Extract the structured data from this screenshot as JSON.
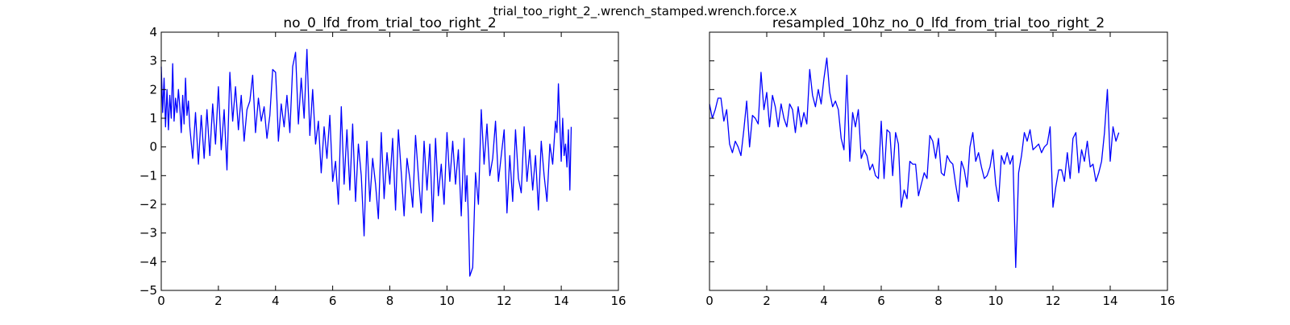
{
  "figure_title": "trial_too_right_2_.wrench_stamped.wrench.force.x",
  "chart_data": [
    {
      "type": "line",
      "title": "no_0_lfd_from_trial_too_right_2",
      "xlabel": "",
      "ylabel": "",
      "xlim": [
        0,
        16
      ],
      "ylim": [
        -5,
        4
      ],
      "xticks": [
        "0",
        "2",
        "4",
        "6",
        "8",
        "10",
        "12",
        "14",
        "16"
      ],
      "yticks": [
        "−5",
        "−4",
        "−3",
        "−2",
        "−1",
        "0",
        "1",
        "2",
        "3",
        "4"
      ],
      "grid": false,
      "line_color": "#0000ff",
      "series": [
        {
          "x": [
            0.0,
            0.05,
            0.1,
            0.15,
            0.2,
            0.25,
            0.3,
            0.35,
            0.4,
            0.45,
            0.5,
            0.55,
            0.6,
            0.65,
            0.7,
            0.75,
            0.8,
            0.85,
            0.9,
            0.95,
            1.0,
            1.1,
            1.2,
            1.3,
            1.4,
            1.5,
            1.6,
            1.7,
            1.8,
            1.9,
            2.0,
            2.1,
            2.2,
            2.3,
            2.4,
            2.5,
            2.6,
            2.7,
            2.8,
            2.9,
            3.0,
            3.1,
            3.2,
            3.3,
            3.4,
            3.5,
            3.6,
            3.7,
            3.8,
            3.9,
            4.0,
            4.05,
            4.1,
            4.2,
            4.3,
            4.4,
            4.5,
            4.6,
            4.7,
            4.8,
            4.9,
            5.0,
            5.1,
            5.2,
            5.3,
            5.4,
            5.5,
            5.6,
            5.7,
            5.8,
            5.9,
            6.0,
            6.1,
            6.2,
            6.3,
            6.4,
            6.5,
            6.6,
            6.7,
            6.8,
            6.9,
            7.0,
            7.1,
            7.2,
            7.3,
            7.4,
            7.5,
            7.6,
            7.7,
            7.8,
            7.9,
            8.0,
            8.1,
            8.2,
            8.3,
            8.4,
            8.5,
            8.6,
            8.7,
            8.8,
            8.9,
            9.0,
            9.1,
            9.2,
            9.3,
            9.4,
            9.5,
            9.6,
            9.7,
            9.8,
            9.9,
            10.0,
            10.1,
            10.2,
            10.3,
            10.4,
            10.5,
            10.6,
            10.65,
            10.7,
            10.75,
            10.8,
            10.9,
            11.0,
            11.1,
            11.2,
            11.3,
            11.4,
            11.5,
            11.6,
            11.7,
            11.8,
            11.9,
            12.0,
            12.1,
            12.2,
            12.3,
            12.4,
            12.5,
            12.6,
            12.7,
            12.8,
            12.9,
            13.0,
            13.1,
            13.2,
            13.3,
            13.4,
            13.5,
            13.6,
            13.7,
            13.8,
            13.85,
            13.9,
            13.95,
            14.0,
            14.05,
            14.1,
            14.15,
            14.2,
            14.25,
            14.3,
            14.35
          ],
          "y": [
            2.8,
            1.2,
            2.4,
            0.7,
            2.0,
            0.6,
            1.8,
            1.0,
            2.9,
            0.9,
            1.7,
            1.2,
            2.0,
            1.4,
            0.5,
            1.8,
            0.8,
            2.4,
            1.1,
            1.6,
            0.7,
            -0.4,
            1.2,
            -0.6,
            1.1,
            -0.4,
            1.3,
            -0.3,
            1.5,
            0.1,
            2.1,
            -0.1,
            1.3,
            -0.8,
            2.6,
            0.9,
            2.1,
            0.6,
            1.8,
            0.2,
            1.3,
            1.6,
            2.5,
            0.5,
            1.7,
            0.9,
            1.4,
            0.3,
            1.1,
            2.7,
            2.6,
            1.6,
            0.2,
            1.5,
            0.7,
            1.8,
            0.5,
            2.8,
            3.3,
            0.8,
            2.4,
            1.0,
            3.4,
            0.4,
            2.0,
            0.1,
            0.9,
            -0.9,
            0.7,
            -0.4,
            1.1,
            -1.2,
            -0.5,
            -2.0,
            1.4,
            -1.3,
            0.6,
            -1.5,
            0.8,
            -1.9,
            0.1,
            -1.0,
            -3.1,
            0.2,
            -1.9,
            -0.4,
            -1.3,
            -2.5,
            0.5,
            -1.8,
            -0.2,
            -1.3,
            0.3,
            -2.2,
            0.6,
            -0.9,
            -2.4,
            -0.4,
            -1.1,
            -2.1,
            0.4,
            -1.0,
            -2.3,
            0.2,
            -1.5,
            0.1,
            -2.6,
            0.3,
            -1.7,
            -0.6,
            -2.0,
            0.5,
            -1.2,
            0.2,
            -1.3,
            -0.1,
            -2.4,
            0.3,
            -1.9,
            -1.0,
            -2.5,
            -4.5,
            -4.2,
            -0.9,
            -2.0,
            1.3,
            -0.6,
            0.8,
            -1.0,
            -0.4,
            0.9,
            -1.2,
            -0.3,
            0.6,
            -2.3,
            -0.3,
            -1.9,
            0.6,
            -1.1,
            -1.6,
            0.7,
            -1.2,
            -0.1,
            -1.5,
            -0.3,
            -2.2,
            0.2,
            -1.0,
            -1.9,
            0.1,
            -0.6,
            0.9,
            0.5,
            2.2,
            0.8,
            -0.5,
            1.0,
            -0.3,
            0.1,
            -0.7,
            0.6,
            -1.5,
            0.7
          ]
        }
      ]
    },
    {
      "type": "line",
      "title": "resampled_10hz_no_0_lfd_from_trial_too_right_2",
      "xlabel": "",
      "ylabel": "",
      "xlim": [
        0,
        16
      ],
      "ylim": [
        -5,
        4
      ],
      "xticks": [
        "0",
        "2",
        "4",
        "6",
        "8",
        "10",
        "12",
        "14",
        "16"
      ],
      "grid": false,
      "line_color": "#0000ff",
      "series": [
        {
          "x": [
            0.0,
            0.1,
            0.2,
            0.3,
            0.4,
            0.5,
            0.6,
            0.7,
            0.8,
            0.9,
            1.0,
            1.1,
            1.2,
            1.3,
            1.4,
            1.5,
            1.6,
            1.7,
            1.8,
            1.9,
            2.0,
            2.1,
            2.2,
            2.3,
            2.4,
            2.5,
            2.6,
            2.7,
            2.8,
            2.9,
            3.0,
            3.1,
            3.2,
            3.3,
            3.4,
            3.5,
            3.6,
            3.7,
            3.8,
            3.9,
            4.0,
            4.1,
            4.2,
            4.3,
            4.4,
            4.5,
            4.6,
            4.7,
            4.8,
            4.9,
            5.0,
            5.1,
            5.2,
            5.3,
            5.4,
            5.5,
            5.6,
            5.7,
            5.8,
            5.9,
            6.0,
            6.1,
            6.2,
            6.3,
            6.4,
            6.5,
            6.6,
            6.7,
            6.8,
            6.9,
            7.0,
            7.1,
            7.2,
            7.3,
            7.4,
            7.5,
            7.6,
            7.7,
            7.8,
            7.9,
            8.0,
            8.1,
            8.2,
            8.3,
            8.4,
            8.5,
            8.6,
            8.7,
            8.8,
            8.9,
            9.0,
            9.1,
            9.2,
            9.3,
            9.4,
            9.5,
            9.6,
            9.7,
            9.8,
            9.9,
            10.0,
            10.1,
            10.2,
            10.3,
            10.4,
            10.5,
            10.6,
            10.7,
            10.8,
            10.9,
            11.0,
            11.1,
            11.2,
            11.3,
            11.4,
            11.5,
            11.6,
            11.7,
            11.8,
            11.9,
            12.0,
            12.1,
            12.2,
            12.3,
            12.4,
            12.5,
            12.6,
            12.7,
            12.8,
            12.9,
            13.0,
            13.1,
            13.2,
            13.3,
            13.4,
            13.5,
            13.6,
            13.7,
            13.8,
            13.9,
            14.0,
            14.1,
            14.2,
            14.3
          ],
          "y": [
            1.5,
            1.0,
            1.3,
            1.7,
            1.7,
            0.9,
            1.3,
            0.1,
            -0.2,
            0.2,
            0.0,
            -0.3,
            0.6,
            1.6,
            0.0,
            1.1,
            1.0,
            0.8,
            2.6,
            1.3,
            1.9,
            0.7,
            1.8,
            1.4,
            0.7,
            1.5,
            1.0,
            0.7,
            1.5,
            1.3,
            0.5,
            1.4,
            0.7,
            1.2,
            0.8,
            2.7,
            1.8,
            1.4,
            2.0,
            1.5,
            2.4,
            3.1,
            1.9,
            1.4,
            1.6,
            1.3,
            0.3,
            -0.1,
            2.5,
            -0.5,
            1.2,
            0.7,
            1.3,
            -0.4,
            -0.1,
            -0.3,
            -0.8,
            -0.6,
            -1.0,
            -1.1,
            0.9,
            -1.1,
            0.6,
            0.5,
            -1.0,
            0.5,
            0.1,
            -2.1,
            -1.5,
            -1.8,
            -0.5,
            -0.6,
            -0.6,
            -1.7,
            -1.3,
            -0.9,
            -1.1,
            0.4,
            0.2,
            -0.4,
            0.3,
            -0.9,
            -1.0,
            -0.3,
            -0.5,
            -0.6,
            -1.3,
            -1.9,
            -0.5,
            -0.8,
            -1.4,
            0.0,
            0.5,
            -0.5,
            -0.2,
            -0.7,
            -1.1,
            -1.0,
            -0.7,
            -0.1,
            -1.3,
            -1.9,
            -0.3,
            -0.6,
            -0.2,
            -0.6,
            -0.3,
            -4.2,
            -0.9,
            -0.3,
            0.5,
            0.2,
            0.6,
            -0.1,
            0.0,
            0.1,
            -0.2,
            0.0,
            0.1,
            0.7,
            -2.1,
            -1.4,
            -0.8,
            -0.8,
            -1.2,
            -0.2,
            -1.1,
            0.3,
            0.5,
            -0.9,
            -0.1,
            -0.5,
            0.2,
            -0.7,
            -0.6,
            -1.2,
            -0.9,
            -0.5,
            0.5,
            2.0,
            -0.5,
            0.7,
            0.2,
            0.5
          ]
        }
      ]
    }
  ]
}
